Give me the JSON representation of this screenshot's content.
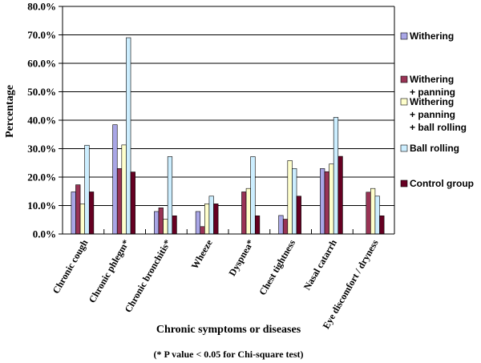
{
  "chart_data": {
    "type": "bar",
    "categories": [
      "Chronic cough",
      "Chronic phlegm*",
      "Chronic bronchitis*",
      "Wheeze",
      "Dyspnea*",
      "Chest tightness",
      "Nasal catarrh",
      "Eye discomfort / dryness"
    ],
    "series": [
      {
        "name": "Withering",
        "values": [
          14.8,
          38.4,
          7.9,
          7.9,
          0.0,
          6.5,
          23.0,
          0.0
        ],
        "color": "#a9a6e6"
      },
      {
        "name": "Withering + panning",
        "values": [
          17.3,
          23.0,
          9.2,
          2.6,
          14.8,
          5.2,
          21.9,
          14.7
        ],
        "color": "#993355"
      },
      {
        "name": "Withering + panning + ball rolling",
        "values": [
          10.6,
          31.3,
          5.2,
          10.6,
          16.0,
          25.8,
          24.6,
          16.0
        ],
        "color": "#ffffcc"
      },
      {
        "name": "Ball rolling",
        "values": [
          31.2,
          69.0,
          27.2,
          13.3,
          27.2,
          23.0,
          41.0,
          13.3
        ],
        "color": "#cceeff"
      },
      {
        "name": "Control group",
        "values": [
          14.8,
          21.8,
          6.4,
          10.6,
          6.4,
          13.3,
          27.3,
          6.4
        ],
        "color": "#660022"
      }
    ],
    "legend_lines": [
      [
        "Withering"
      ],
      [
        "Withering",
        "+ panning"
      ],
      [
        "Withering",
        "+ panning",
        "+ ball rolling"
      ],
      [
        "Ball rolling"
      ],
      [
        "Control group"
      ]
    ],
    "y_ticks": [
      "0.0%",
      "10.0%",
      "20.0%",
      "30.0%",
      "40.0%",
      "50.0%",
      "60.0%",
      "70.0%",
      "80.0%"
    ],
    "ylim": [
      0,
      80
    ],
    "ylabel": "Percentage",
    "xlabel": "Chronic symptoms or diseases",
    "footnote": "(* P value < 0.05 for Chi-square test)",
    "legend_position": "right",
    "grid": true
  }
}
